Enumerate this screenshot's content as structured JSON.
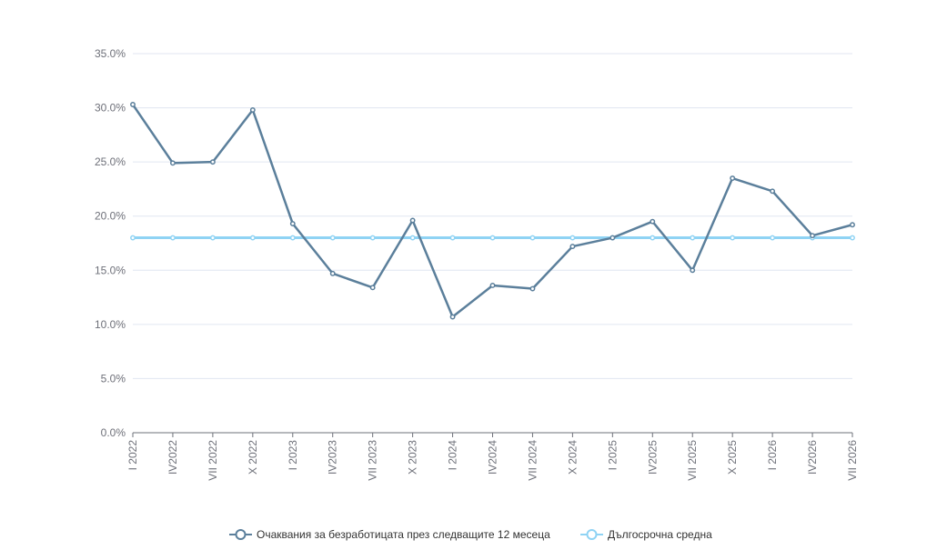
{
  "chart_data": {
    "type": "line",
    "title": "",
    "xlabel": "",
    "ylabel": "",
    "categories": [
      "I 2022",
      "IV2022",
      "VII 2022",
      "X 2022",
      "I 2023",
      "IV2023",
      "VII 2023",
      "X 2023",
      "I 2024",
      "IV2024",
      "VII 2024",
      "X 2024",
      "I 2025",
      "IV2025",
      "VII 2025",
      "X 2025",
      "I 2026",
      "IV2026",
      "VII 2026"
    ],
    "y_ticks": [
      "0.0%",
      "5.0%",
      "10.0%",
      "15.0%",
      "20.0%",
      "25.0%",
      "30.0%",
      "35.0%"
    ],
    "ylim": [
      0,
      35
    ],
    "grid": true,
    "legend_position": "bottom-center",
    "series": [
      {
        "name": "Очаквания за безработицата през следващите 12 месеца",
        "color": "#5b7f9b",
        "values": [
          30.3,
          24.9,
          25.0,
          29.8,
          19.3,
          14.7,
          13.4,
          19.6,
          10.7,
          13.6,
          13.3,
          17.2,
          18.0,
          19.5,
          15.0,
          23.5,
          22.3,
          18.2,
          19.2
        ]
      },
      {
        "name": "Дългосрочна средна",
        "color": "#8fd3f4",
        "values": [
          18.0,
          18.0,
          18.0,
          18.0,
          18.0,
          18.0,
          18.0,
          18.0,
          18.0,
          18.0,
          18.0,
          18.0,
          18.0,
          18.0,
          18.0,
          18.0,
          18.0,
          18.0,
          18.0
        ]
      }
    ]
  }
}
